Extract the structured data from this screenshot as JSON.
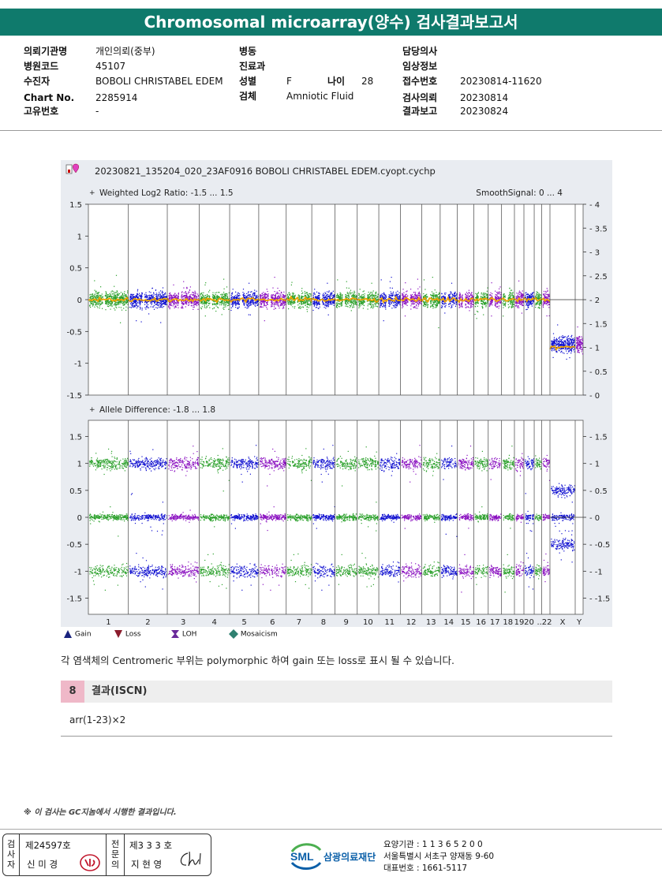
{
  "title": "Chromosomal microarray(양수) 검사결과보고서",
  "patient_info": {
    "col1": [
      {
        "label": "의뢰기관명",
        "value": "개인의뢰(중부)"
      },
      {
        "label": "병원코드",
        "value": "45107"
      },
      {
        "label": "수진자",
        "value": "BOBOLI CHRISTABEL EDEM"
      },
      {
        "label": "Chart No.",
        "value": "2285914"
      },
      {
        "label": "고유번호",
        "value": "-"
      }
    ],
    "col2": [
      {
        "label": "병동",
        "value": ""
      },
      {
        "label": "진료과",
        "value": ""
      },
      {
        "label": "성별",
        "value": "F"
      },
      {
        "label": "검체",
        "value": "Amniotic Fluid"
      }
    ],
    "age": {
      "label": "나이",
      "value": "28"
    },
    "col3": [
      {
        "label": "담당의사",
        "value": ""
      },
      {
        "label": "임상정보",
        "value": ""
      },
      {
        "label": "접수번호",
        "value": "20230814-11620"
      },
      {
        "label": "검사의뢰",
        "value": "20230814"
      },
      {
        "label": "결과보고",
        "value": "20230824"
      }
    ]
  },
  "chart_data": {
    "type": "scatter",
    "file_name": "20230821_135204_020_23AF0916 BOBOLI CHRISTABEL EDEM.cyopt.cychp",
    "chromosomes": [
      "1",
      "2",
      "3",
      "4",
      "5",
      "6",
      "7",
      "8",
      "9",
      "10",
      "11",
      "12",
      "13",
      "14",
      "15",
      "16",
      "17",
      "18",
      "19",
      "20",
      "21",
      "22",
      "X",
      "Y"
    ],
    "x_tick_labels": [
      "1",
      "2",
      "3",
      "4",
      "5",
      "6",
      "7",
      "8",
      "9",
      "10",
      "11",
      "12",
      "13",
      "14",
      "15",
      "16",
      "17",
      "18",
      "19",
      "20",
      "..22",
      "X",
      "Y"
    ],
    "chromosome_colors": [
      "#2aa02a",
      "#1010d0",
      "#8a10c0",
      "#2aa02a",
      "#1010d0",
      "#8a10c0",
      "#2aa02a",
      "#1010d0",
      "#2aa02a",
      "#2aa02a",
      "#1010d0",
      "#8a10c0",
      "#2aa02a",
      "#1010d0",
      "#8a10c0",
      "#2aa02a",
      "#8a10c0",
      "#2aa02a",
      "#8a10c0",
      "#1010d0",
      "#2aa02a",
      "#8a10c0",
      "#1010d0",
      "#8a10c0"
    ],
    "panels": [
      {
        "name": "Weighted Log2 Ratio",
        "label": "Weighted Log2 Ratio: -1.5 ... 1.5",
        "right_label": "SmoothSignal: 0 ... 4",
        "ylim": [
          -1.5,
          1.5
        ],
        "y_ticks": [
          "1.5",
          "1",
          "0.5",
          "0",
          "-0.5",
          "-1",
          "-1.5"
        ],
        "y2lim": [
          0,
          4
        ],
        "y2_ticks": [
          "4",
          "3.5",
          "3",
          "2.5",
          "2",
          "1.5",
          "1",
          "0.5",
          "0"
        ],
        "mean_log2_ratio": {
          "autosomes": 0.0,
          "X": -0.7,
          "Y": -0.7
        },
        "smooth_signal": {
          "autosomes": 2,
          "X": 1
        }
      },
      {
        "name": "Allele Difference",
        "label": "Allele Difference: -1.8 ... 1.8",
        "ylim": [
          -1.8,
          1.8
        ],
        "y_ticks": [
          "1.5",
          "1",
          "0.5",
          "0",
          "-0.5",
          "-1",
          "-1.5"
        ],
        "y2_ticks": [
          "1.5",
          "1",
          "0.5",
          "0",
          "-0.5",
          "-1",
          "-1.5"
        ],
        "bands": {
          "autosomes": [
            1,
            0,
            -1
          ],
          "X": [
            0.5,
            0,
            -0.5
          ]
        }
      }
    ],
    "smooth_color": "#f0a400",
    "legend": [
      {
        "label": "Gain",
        "color": "#1a237e"
      },
      {
        "label": "Loss",
        "color": "#8b1c2c"
      },
      {
        "label": "LOH",
        "color": "#6a2a9a"
      },
      {
        "label": "Mosaicism",
        "color": "#2f8070"
      }
    ]
  },
  "note": "각 염색체의 Centromeric 부위는 polymorphic 하여 gain 또는 loss로 표시 될 수 있습니다.",
  "section": {
    "number": "8",
    "title": "결과(ISCN)"
  },
  "iscn": "arr(1-23)×2",
  "footer_note": "※ 이 검사는 GC지놈에서 시행한 결과입니다.",
  "signatures": {
    "tester_label": "검사자",
    "tester_license": "제24597호",
    "tester_name": "신 미 경",
    "specialist_label": "전문의",
    "specialist_license": "제3 3 3 호",
    "specialist_name": "지 현 영"
  },
  "org": {
    "logo": "SML",
    "name": "삼광의료재단",
    "line1": "요양기관 : 1 1 3 6 5 2 0 0",
    "line2": "서울특별시 서초구 양재동 9-60",
    "line3": "대표번호 : 1661-5117"
  }
}
